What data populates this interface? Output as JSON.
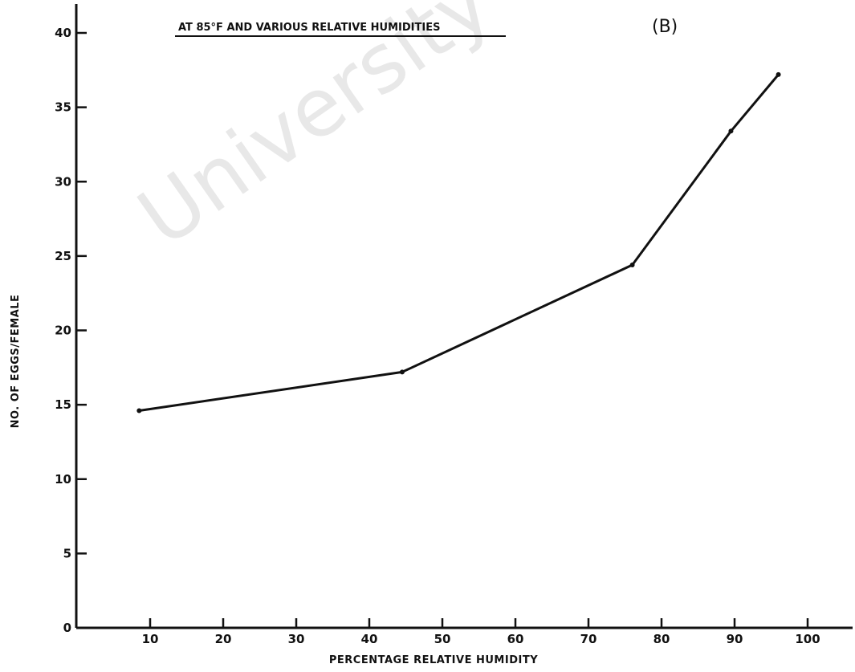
{
  "chart_data": {
    "type": "line",
    "title": "AT  85°F AND VARIOUS RELATIVE  HUMIDITIES",
    "panel_label": "(B)",
    "xlabel": "PERCENTAGE RELATIVE  HUMIDITY",
    "ylabel": "NO. OF EGGS/FEMALE",
    "xlim": [
      0,
      105
    ],
    "ylim": [
      0,
      41
    ],
    "x_ticks": [
      10,
      20,
      30,
      40,
      50,
      60,
      70,
      80,
      90,
      100
    ],
    "y_ticks": [
      0,
      5,
      10,
      15,
      20,
      25,
      30,
      35,
      40
    ],
    "grid": false,
    "series": [
      {
        "x": [
          8.5,
          44.5,
          76,
          89.5,
          96
        ],
        "y": [
          14.6,
          17.2,
          24.4,
          33.4,
          37.2
        ]
      }
    ]
  },
  "watermark": "University of"
}
